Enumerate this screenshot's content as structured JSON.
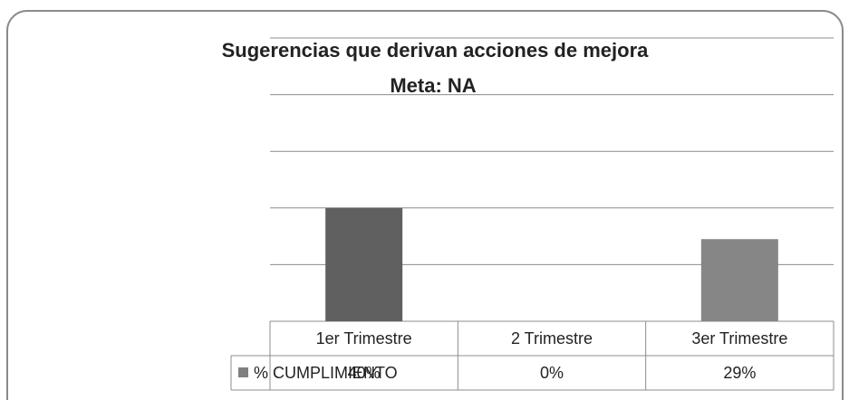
{
  "chart_data": {
    "type": "bar",
    "title": "Sugerencias que derivan acciones de mejora",
    "subtitle": "Meta: NA",
    "categories": [
      "1er Trimestre",
      "2 Trimestre",
      "3er Trimestre"
    ],
    "series": [
      {
        "name": "% CUMPLIMIENTO",
        "color": "#808080",
        "colors": [
          "#606060",
          "#7a7a7a",
          "#868686"
        ],
        "values": [
          40,
          0,
          29
        ],
        "value_labels": [
          "40%",
          "0%",
          "29%"
        ]
      }
    ],
    "ylim": [
      0,
      100
    ],
    "yticks": [
      0,
      20,
      40,
      60,
      80,
      100
    ],
    "grid": true
  }
}
